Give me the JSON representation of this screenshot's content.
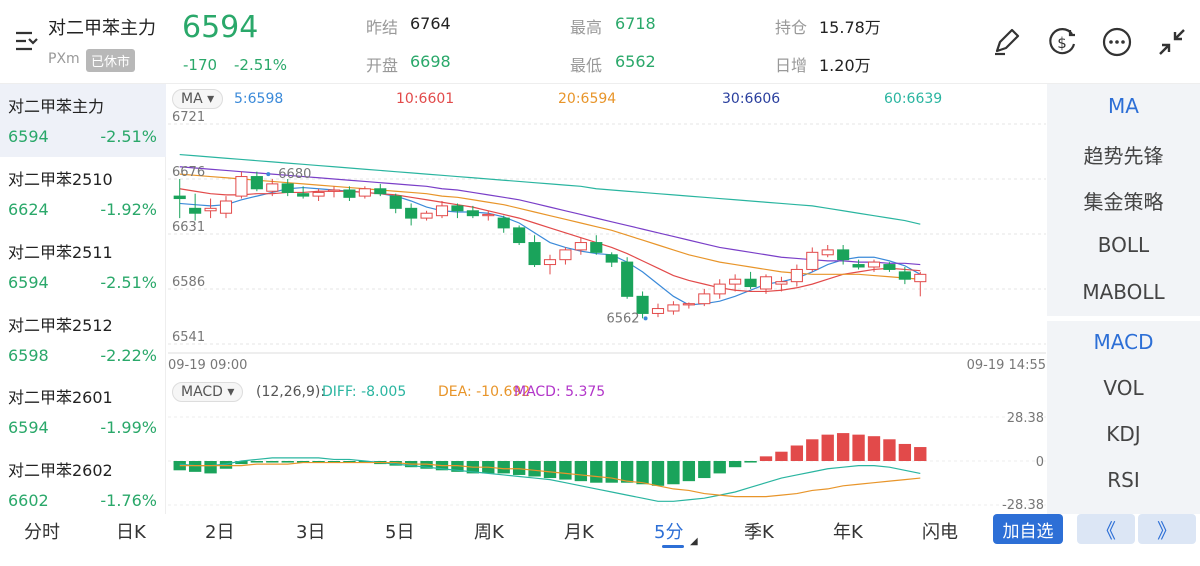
{
  "header": {
    "title": "对二甲苯主力",
    "code": "PXm",
    "status": "已休市",
    "price": "6594",
    "change": "-170",
    "change_pct": "-2.51%",
    "stats": [
      {
        "label": "昨结",
        "value": "6764"
      },
      {
        "label": "最高",
        "value": "6718"
      },
      {
        "label": "持仓",
        "value": "15.78万"
      },
      {
        "label": "开盘",
        "value": "6698"
      },
      {
        "label": "最低",
        "value": "6562"
      },
      {
        "label": "日增",
        "value": "1.20万"
      }
    ]
  },
  "sidebar": {
    "items": [
      {
        "name": "对二甲苯主力",
        "price": "6594",
        "pct": "-2.51%"
      },
      {
        "name": "对二甲苯2510",
        "price": "6624",
        "pct": "-1.92%"
      },
      {
        "name": "对二甲苯2511",
        "price": "6594",
        "pct": "-2.51%"
      },
      {
        "name": "对二甲苯2512",
        "price": "6598",
        "pct": "-2.22%"
      },
      {
        "name": "对二甲苯2601",
        "price": "6594",
        "pct": "-1.99%"
      },
      {
        "name": "对二甲苯2602",
        "price": "6602",
        "pct": "-1.76%"
      }
    ]
  },
  "ma_legend": {
    "selector": "MA",
    "items": [
      {
        "label": "5:6598",
        "color": "#3b8ad9"
      },
      {
        "label": "10:6601",
        "color": "#e24a4a"
      },
      {
        "label": "20:6594",
        "color": "#e8952a"
      },
      {
        "label": "30:6606",
        "color": "#2a3f9e"
      },
      {
        "label": "60:6639",
        "color": "#2ab5a0"
      }
    ]
  },
  "macd_legend": {
    "selector": "MACD",
    "params": "(12,26,9):",
    "diff": "DIFF: -8.005",
    "dea": "DEA: -10.692",
    "macd": "MACD: 5.375"
  },
  "chart_data": {
    "type": "candlestick",
    "y_ticks": [
      "6721",
      "6676",
      "6631",
      "6586",
      "6541"
    ],
    "ylim": [
      6541,
      6721
    ],
    "x_start": "09-19 09:00",
    "x_end": "09-19 14:55",
    "high_marker": "6680",
    "low_marker": "6562",
    "macd_ticks": [
      "28.38",
      "0",
      "-28.38"
    ],
    "colors": {
      "up": "#e24a4a",
      "down": "#1aa35b"
    },
    "candles": [
      {
        "o": 6662,
        "h": 6676,
        "l": 6644,
        "c": 6660
      },
      {
        "o": 6652,
        "h": 6664,
        "l": 6642,
        "c": 6648
      },
      {
        "o": 6650,
        "h": 6660,
        "l": 6644,
        "c": 6652
      },
      {
        "o": 6648,
        "h": 6662,
        "l": 6644,
        "c": 6658
      },
      {
        "o": 6662,
        "h": 6682,
        "l": 6660,
        "c": 6678
      },
      {
        "o": 6678,
        "h": 6682,
        "l": 6666,
        "c": 6668
      },
      {
        "o": 6666,
        "h": 6676,
        "l": 6662,
        "c": 6672
      },
      {
        "o": 6672,
        "h": 6676,
        "l": 6662,
        "c": 6665
      },
      {
        "o": 6664,
        "h": 6670,
        "l": 6660,
        "c": 6662
      },
      {
        "o": 6662,
        "h": 6668,
        "l": 6658,
        "c": 6665
      },
      {
        "o": 6666,
        "h": 6670,
        "l": 6661,
        "c": 6667
      },
      {
        "o": 6667,
        "h": 6670,
        "l": 6658,
        "c": 6661
      },
      {
        "o": 6662,
        "h": 6670,
        "l": 6660,
        "c": 6668
      },
      {
        "o": 6668,
        "h": 6672,
        "l": 6662,
        "c": 6664
      },
      {
        "o": 6662,
        "h": 6664,
        "l": 6648,
        "c": 6652
      },
      {
        "o": 6652,
        "h": 6656,
        "l": 6638,
        "c": 6644
      },
      {
        "o": 6644,
        "h": 6650,
        "l": 6642,
        "c": 6648
      },
      {
        "o": 6646,
        "h": 6658,
        "l": 6644,
        "c": 6654
      },
      {
        "o": 6654,
        "h": 6656,
        "l": 6644,
        "c": 6650
      },
      {
        "o": 6650,
        "h": 6654,
        "l": 6644,
        "c": 6646
      },
      {
        "o": 6646,
        "h": 6650,
        "l": 6642,
        "c": 6647
      },
      {
        "o": 6644,
        "h": 6646,
        "l": 6632,
        "c": 6636
      },
      {
        "o": 6636,
        "h": 6638,
        "l": 6622,
        "c": 6624
      },
      {
        "o": 6624,
        "h": 6630,
        "l": 6604,
        "c": 6606
      },
      {
        "o": 6606,
        "h": 6614,
        "l": 6598,
        "c": 6610
      },
      {
        "o": 6610,
        "h": 6620,
        "l": 6606,
        "c": 6618
      },
      {
        "o": 6618,
        "h": 6628,
        "l": 6614,
        "c": 6624
      },
      {
        "o": 6624,
        "h": 6630,
        "l": 6614,
        "c": 6616
      },
      {
        "o": 6614,
        "h": 6616,
        "l": 6604,
        "c": 6608
      },
      {
        "o": 6608,
        "h": 6612,
        "l": 6578,
        "c": 6580
      },
      {
        "o": 6580,
        "h": 6584,
        "l": 6562,
        "c": 6566
      },
      {
        "o": 6566,
        "h": 6574,
        "l": 6563,
        "c": 6570
      },
      {
        "o": 6568,
        "h": 6576,
        "l": 6565,
        "c": 6573
      },
      {
        "o": 6573,
        "h": 6575,
        "l": 6570,
        "c": 6574
      },
      {
        "o": 6574,
        "h": 6586,
        "l": 6572,
        "c": 6582
      },
      {
        "o": 6582,
        "h": 6594,
        "l": 6578,
        "c": 6590
      },
      {
        "o": 6590,
        "h": 6598,
        "l": 6584,
        "c": 6594
      },
      {
        "o": 6594,
        "h": 6600,
        "l": 6586,
        "c": 6588
      },
      {
        "o": 6586,
        "h": 6598,
        "l": 6582,
        "c": 6596
      },
      {
        "o": 6590,
        "h": 6596,
        "l": 6584,
        "c": 6592
      },
      {
        "o": 6592,
        "h": 6606,
        "l": 6588,
        "c": 6602
      },
      {
        "o": 6602,
        "h": 6620,
        "l": 6600,
        "c": 6616
      },
      {
        "o": 6614,
        "h": 6622,
        "l": 6612,
        "c": 6618
      },
      {
        "o": 6618,
        "h": 6622,
        "l": 6606,
        "c": 6610
      },
      {
        "o": 6606,
        "h": 6610,
        "l": 6602,
        "c": 6604
      },
      {
        "o": 6604,
        "h": 6610,
        "l": 6600,
        "c": 6608
      },
      {
        "o": 6606,
        "h": 6608,
        "l": 6600,
        "c": 6602
      },
      {
        "o": 6600,
        "h": 6604,
        "l": 6590,
        "c": 6594
      },
      {
        "o": 6592,
        "h": 6600,
        "l": 6580,
        "c": 6598
      }
    ],
    "ma_lines": [
      {
        "name": "5",
        "color": "#3b8ad9",
        "values": [
          6656,
          6655,
          6654,
          6655,
          6659,
          6662,
          6665,
          6668,
          6669,
          6668,
          6667,
          6666,
          6665,
          6664,
          6662,
          6658,
          6653,
          6650,
          6649,
          6649,
          6648,
          6645,
          6640,
          6632,
          6624,
          6620,
          6617,
          6615,
          6614,
          6608,
          6600,
          6590,
          6580,
          6573,
          6574,
          6576,
          6580,
          6585,
          6590,
          6592,
          6595,
          6600,
          6606,
          6610,
          6612,
          6612,
          6609,
          6605,
          6598
        ]
      },
      {
        "name": "10",
        "color": "#e24a4a",
        "values": [
          6668,
          6666,
          6664,
          6663,
          6663,
          6664,
          6664,
          6665,
          6665,
          6666,
          6666,
          6666,
          6665,
          6664,
          6663,
          6661,
          6659,
          6657,
          6655,
          6653,
          6650,
          6647,
          6644,
          6640,
          6636,
          6632,
          6628,
          6624,
          6620,
          6615,
          6609,
          6603,
          6597,
          6593,
          6590,
          6587,
          6585,
          6584,
          6584,
          6585,
          6587,
          6590,
          6594,
          6598,
          6600,
          6602,
          6603,
          6602,
          6601
        ]
      },
      {
        "name": "20",
        "color": "#e8952a",
        "values": [
          6680,
          6679,
          6678,
          6677,
          6676,
          6675,
          6674,
          6673,
          6672,
          6671,
          6670,
          6669,
          6668,
          6667,
          6666,
          6665,
          6664,
          6662,
          6661,
          6659,
          6657,
          6655,
          6652,
          6649,
          6646,
          6643,
          6640,
          6637,
          6634,
          6630,
          6626,
          6622,
          6618,
          6614,
          6611,
          6608,
          6606,
          6604,
          6602,
          6600,
          6599,
          6598,
          6598,
          6598,
          6598,
          6597,
          6596,
          6595,
          6594
        ]
      },
      {
        "name": "30",
        "color": "#7a3fc8",
        "values": [
          6686,
          6685,
          6684,
          6683,
          6682,
          6681,
          6680,
          6679,
          6678,
          6677,
          6676,
          6675,
          6674,
          6673,
          6672,
          6671,
          6670,
          6668,
          6667,
          6665,
          6663,
          6661,
          6659,
          6656,
          6653,
          6650,
          6647,
          6644,
          6641,
          6638,
          6635,
          6632,
          6629,
          6626,
          6623,
          6620,
          6618,
          6616,
          6614,
          6612,
          6611,
          6610,
          6609,
          6609,
          6608,
          6608,
          6607,
          6607,
          6606
        ]
      },
      {
        "name": "60",
        "color": "#2ab5a0",
        "values": [
          6696,
          6695,
          6694,
          6693,
          6692,
          6691,
          6690,
          6689,
          6688,
          6687,
          6686,
          6685,
          6684,
          6683,
          6682,
          6681,
          6680,
          6679,
          6678,
          6677,
          6676,
          6675,
          6674,
          6673,
          6672,
          6671,
          6670,
          6668,
          6667,
          6666,
          6665,
          6664,
          6663,
          6662,
          6661,
          6660,
          6659,
          6658,
          6657,
          6656,
          6655,
          6654,
          6652,
          6650,
          6648,
          6646,
          6644,
          6642,
          6639
        ]
      }
    ],
    "macd_hist": [
      -6,
      -7,
      -8,
      -5,
      -2,
      -1,
      -1,
      -1,
      -1,
      -1,
      -1,
      -1,
      -1,
      -2,
      -3,
      -4,
      -5,
      -6,
      -7,
      -8,
      -8,
      -8,
      -9,
      -10,
      -11,
      -12,
      -13,
      -14,
      -14,
      -14,
      -15,
      -16,
      -15,
      -13,
      -11,
      -8,
      -4,
      -1,
      3,
      6,
      10,
      14,
      17,
      18,
      17,
      16,
      14,
      11,
      9
    ],
    "diff": [
      -2,
      -3,
      -3,
      -2,
      0,
      1,
      2,
      2,
      2,
      2,
      1,
      1,
      0,
      -1,
      -2,
      -3,
      -4,
      -5,
      -6,
      -7,
      -8,
      -9,
      -10,
      -11,
      -12,
      -14,
      -16,
      -18,
      -20,
      -22,
      -24,
      -26,
      -26,
      -25,
      -24,
      -22,
      -20,
      -17,
      -14,
      -11,
      -9,
      -7,
      -5,
      -4,
      -3,
      -3,
      -4,
      -6,
      -8
    ],
    "dea": [
      -3,
      -3,
      -3,
      -3,
      -3,
      -2,
      -2,
      -2,
      -1,
      -1,
      -1,
      -1,
      -1,
      -1,
      -1,
      -2,
      -2,
      -3,
      -3,
      -4,
      -4,
      -5,
      -5,
      -6,
      -7,
      -8,
      -9,
      -10,
      -11,
      -13,
      -14,
      -16,
      -18,
      -19,
      -21,
      -22,
      -23,
      -23,
      -23,
      -22,
      -21,
      -19,
      -18,
      -16,
      -15,
      -14,
      -13,
      -12,
      -11
    ]
  },
  "right_panel": {
    "indicators_top": [
      "MA",
      "趋势先锋",
      "集金策略",
      "BOLL",
      "MABOLL"
    ],
    "indicators_bottom": [
      "MACD",
      "VOL",
      "KDJ",
      "RSI"
    ]
  },
  "bottom_tabs": [
    "分时",
    "日K",
    "2日",
    "3日",
    "5日",
    "周K",
    "月K",
    "5分",
    "季K",
    "年K",
    "闪电"
  ],
  "bottom_selected": "5分",
  "actions": {
    "add": "加自选",
    "prev": "《",
    "next": "》"
  },
  "colors": {
    "accent": "#2d6fd6",
    "down": "#2aa86a",
    "up": "#e24a4a"
  }
}
